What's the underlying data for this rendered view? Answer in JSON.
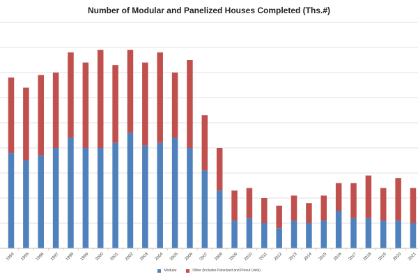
{
  "chart_data": {
    "type": "bar",
    "stacked": true,
    "title": "Number of Modular and Panelized Houses Completed (Ths.#)",
    "xlabel": "",
    "ylabel": "",
    "ylim": [
      0,
      45
    ],
    "grid": true,
    "legend_position": "bottom",
    "categories": [
      "1994",
      "1995",
      "1996",
      "1997",
      "1998",
      "1999",
      "2000",
      "2001",
      "2002",
      "2003",
      "2004",
      "2005",
      "2006",
      "2007",
      "2008",
      "2009",
      "2010",
      "2011",
      "2012",
      "2013",
      "2014",
      "2015",
      "2016",
      "2017",
      "2018",
      "2019",
      "2020",
      "2021"
    ],
    "series": [
      {
        "name": "Modular",
        "color": "#4f81bd",
        "values": [
          19,
          17.5,
          18.5,
          20,
          22,
          20,
          20,
          21,
          23,
          20.5,
          21,
          22,
          20,
          15.5,
          11.5,
          5.5,
          6,
          5,
          4,
          5.5,
          5,
          5.5,
          7.5,
          6,
          6,
          5.5,
          5.5,
          5
        ]
      },
      {
        "name": "Other (Includes Panelized and Precut Units)",
        "color": "#c0504d",
        "values": [
          15,
          14.5,
          16,
          15,
          17,
          17,
          19.5,
          15.5,
          16.5,
          16.5,
          18,
          13,
          17.5,
          11,
          8.5,
          6,
          6,
          5,
          4.5,
          5,
          4,
          5,
          5.5,
          7,
          8.5,
          6.5,
          8.5,
          7
        ]
      }
    ]
  }
}
